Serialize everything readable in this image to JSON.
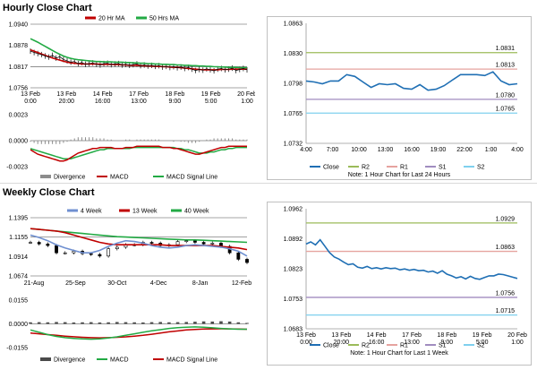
{
  "sections": {
    "hourly_title": "Hourly Close Chart",
    "weekly_title": "Weekly Close Chart"
  },
  "chart_data": [
    {
      "id": "hourly_price",
      "type": "line",
      "legend": [
        "20 Hr MA",
        "50 Hrs MA"
      ],
      "colors": {
        "price": "#000000",
        "ma20": "#c00000",
        "ma50": "#22aa44",
        "ref": "#808080"
      },
      "ylim": [
        1.0756,
        1.094
      ],
      "yticks": [
        "1.0940",
        "1.0878",
        "1.0817",
        "1.0756"
      ],
      "ref_level": 1.0817,
      "xticks": [
        "13 Feb\n0:00",
        "13 Feb\n20:00",
        "14 Feb\n16:00",
        "17 Feb\n13:00",
        "18 Feb\n9:00",
        "19 Feb\n5:00",
        "20 Feb\n1:00"
      ],
      "series": [
        {
          "name": "price",
          "values": [
            1.0862,
            1.0858,
            1.0855,
            1.0852,
            1.0848,
            1.0845,
            1.085,
            1.0842,
            1.0846,
            1.0838,
            1.0834,
            1.083,
            1.0832,
            1.0826,
            1.0829,
            1.0824,
            1.0826,
            1.0828,
            1.0824,
            1.0822,
            1.0826,
            1.0827,
            1.0823,
            1.0825,
            1.0826,
            1.0822,
            1.0824,
            1.0821,
            1.0823,
            1.0825,
            1.082,
            1.0822,
            1.0819,
            1.0821,
            1.0818,
            1.082,
            1.0816,
            1.0818,
            1.0815,
            1.0817,
            1.0814,
            1.0816,
            1.0812,
            1.0815,
            1.081,
            1.0806,
            1.0809,
            1.0807,
            1.0811,
            1.0808,
            1.0805,
            1.081,
            1.0812,
            1.0808,
            1.081,
            1.0813,
            1.0806,
            1.0809,
            1.0812,
            1.0808
          ]
        },
        {
          "name": "20 Hr MA",
          "values": [
            1.0866,
            1.0862,
            1.0858,
            1.0854,
            1.085,
            1.0846,
            1.0842,
            1.0839,
            1.0836,
            1.0833,
            1.083,
            1.0828,
            1.0827,
            1.0826,
            1.0825,
            1.0825,
            1.0825,
            1.0825,
            1.0825,
            1.0824,
            1.0824,
            1.0824,
            1.0824,
            1.0823,
            1.0823,
            1.0822,
            1.0822,
            1.0821,
            1.0821,
            1.0821,
            1.082,
            1.082,
            1.0819,
            1.0819,
            1.0818,
            1.0818,
            1.0817,
            1.0817,
            1.0816,
            1.0815,
            1.0815,
            1.0814,
            1.0813,
            1.0812,
            1.0811,
            1.081,
            1.0809,
            1.0808,
            1.0808,
            1.0808,
            1.0808,
            1.0808,
            1.0809,
            1.0809,
            1.0809,
            1.081,
            1.081,
            1.081,
            1.081,
            1.081
          ]
        },
        {
          "name": "50 Hrs MA",
          "values": [
            1.0898,
            1.0893,
            1.0888,
            1.0882,
            1.0876,
            1.087,
            1.0864,
            1.0858,
            1.0853,
            1.0848,
            1.0844,
            1.0841,
            1.0839,
            1.0837,
            1.0836,
            1.0835,
            1.0834,
            1.0833,
            1.0832,
            1.0832,
            1.0831,
            1.0831,
            1.0831,
            1.083,
            1.083,
            1.083,
            1.0829,
            1.0829,
            1.0828,
            1.0828,
            1.0827,
            1.0827,
            1.0826,
            1.0826,
            1.0825,
            1.0825,
            1.0824,
            1.0824,
            1.0823,
            1.0823,
            1.0822,
            1.0822,
            1.0821,
            1.0821,
            1.082,
            1.082,
            1.0819,
            1.0819,
            1.0818,
            1.0818,
            1.0817,
            1.0817,
            1.0816,
            1.0816,
            1.0815,
            1.0815,
            1.0815,
            1.0814,
            1.0814,
            1.0814
          ]
        }
      ]
    },
    {
      "id": "hourly_macd",
      "type": "bar",
      "legend": [
        "Divergence",
        "MACD",
        "MACD Signal Line"
      ],
      "colors": {
        "divergence": "#8c8c8c",
        "macd": "#c00000",
        "signal": "#22aa44"
      },
      "ylim": [
        -0.0023,
        0.0023
      ],
      "yticks": [
        "0.0023",
        "0.0000",
        "-0.0023"
      ],
      "series": [
        {
          "name": "MACD",
          "values": [
            -0.0008,
            -0.001,
            -0.0012,
            -0.0013,
            -0.0014,
            -0.0015,
            -0.0016,
            -0.0017,
            -0.0018,
            -0.0018,
            -0.0017,
            -0.0015,
            -0.0013,
            -0.0011,
            -0.001,
            -0.0009,
            -0.0008,
            -0.0007,
            -0.0007,
            -0.0006,
            -0.0006,
            -0.0006,
            -0.0006,
            -0.0007,
            -0.0007,
            -0.0007,
            -0.0006,
            -0.0006,
            -0.0006,
            -0.0005,
            -0.0005,
            -0.0005,
            -0.0005,
            -0.0005,
            -0.0005,
            -0.0005,
            -0.0006,
            -0.0006,
            -0.0006,
            -0.0007,
            -0.0007,
            -0.0008,
            -0.0009,
            -0.001,
            -0.0011,
            -0.0012,
            -0.0012,
            -0.0011,
            -0.001,
            -0.0009,
            -0.0008,
            -0.0007,
            -0.0006,
            -0.0006,
            -0.0005,
            -0.0005,
            -0.0005,
            -0.0005,
            -0.0005,
            -0.0005
          ]
        },
        {
          "name": "MACD Signal Line",
          "values": [
            -0.0007,
            -0.0008,
            -0.0009,
            -0.001,
            -0.0011,
            -0.0012,
            -0.0013,
            -0.0014,
            -0.0015,
            -0.0016,
            -0.0016,
            -0.0016,
            -0.0015,
            -0.0014,
            -0.0013,
            -0.0012,
            -0.0011,
            -0.001,
            -0.0009,
            -0.0008,
            -0.0008,
            -0.0007,
            -0.0007,
            -0.0007,
            -0.0007,
            -0.0007,
            -0.0007,
            -0.0007,
            -0.0006,
            -0.0006,
            -0.0006,
            -0.0006,
            -0.0006,
            -0.0006,
            -0.0006,
            -0.0006,
            -0.0006,
            -0.0006,
            -0.0006,
            -0.0006,
            -0.0007,
            -0.0007,
            -0.0008,
            -0.0008,
            -0.0009,
            -0.001,
            -0.0011,
            -0.0011,
            -0.0011,
            -0.001,
            -0.001,
            -0.0009,
            -0.0008,
            -0.0008,
            -0.0007,
            -0.0007,
            -0.0006,
            -0.0006,
            -0.0006,
            -0.0006
          ]
        },
        {
          "name": "Divergence",
          "values": [
            -0.0001,
            -0.0002,
            -0.0003,
            -0.0003,
            -0.0003,
            -0.0003,
            -0.0003,
            -0.0003,
            -0.0003,
            -0.0002,
            -0.0001,
            0.0001,
            0.0002,
            0.0003,
            0.0003,
            0.0003,
            0.0003,
            0.0003,
            0.0002,
            0.0002,
            0.0002,
            0.0001,
            0.0001,
            0.0,
            0.0,
            0.0,
            0.0001,
            0.0001,
            0.0,
            0.0001,
            0.0001,
            0.0001,
            0.0001,
            0.0001,
            0.0001,
            0.0001,
            0.0,
            0.0,
            0.0,
            -0.0001,
            0.0,
            -0.0001,
            -0.0001,
            -0.0002,
            -0.0002,
            -0.0002,
            -0.0001,
            0.0,
            0.0001,
            0.0001,
            0.0002,
            0.0002,
            0.0002,
            0.0002,
            0.0002,
            0.0002,
            0.0001,
            0.0001,
            0.0001,
            0.0001
          ]
        }
      ]
    },
    {
      "id": "hourly_pivot",
      "type": "line",
      "ylim": [
        1.0732,
        1.0863
      ],
      "yticks": [
        "1.0863",
        "1.0830",
        "1.0798",
        "1.0765",
        "1.0732"
      ],
      "xticks": [
        "4:00",
        "7:00",
        "10:00",
        "13:00",
        "16:00",
        "19:00",
        "22:00",
        "1:00",
        "4:00"
      ],
      "levels": [
        {
          "name": "R2",
          "value": 1.0831,
          "label": "1.0831",
          "color": "#9bbb59"
        },
        {
          "name": "R1",
          "value": 1.0813,
          "label": "1.0813",
          "color": "#e6a39f"
        },
        {
          "name": "S1",
          "value": 1.078,
          "label": "1.0780",
          "color": "#a08cbf"
        },
        {
          "name": "S2",
          "value": 1.0765,
          "label": "1.0765",
          "color": "#7fd0ee"
        }
      ],
      "series": [
        {
          "name": "Close",
          "color": "#1f6fb4",
          "values": [
            1.08,
            1.0799,
            1.0797,
            1.08,
            1.08,
            1.0807,
            1.0805,
            1.0799,
            1.0793,
            1.0797,
            1.0796,
            1.0797,
            1.0792,
            1.0791,
            1.0796,
            1.079,
            1.0791,
            1.0795,
            1.0801,
            1.0807,
            1.0807,
            1.0807,
            1.0806,
            1.081,
            1.08,
            1.0796,
            1.0797
          ]
        }
      ],
      "legend": [
        "Close",
        "R2",
        "R1",
        "S1",
        "S2"
      ],
      "note": "Note: 1 Hour Chart for Last 24 Hours"
    },
    {
      "id": "weekly_price",
      "type": "line",
      "legend": [
        "4 Week",
        "13 Week",
        "40 Week"
      ],
      "colors": {
        "w4": "#6f8fd0",
        "w13": "#c00000",
        "w40": "#22aa44",
        "ref": "#808080"
      },
      "ylim": [
        1.0674,
        1.1395
      ],
      "yticks": [
        "1.1395",
        "1.1155",
        "1.0914",
        "1.0674"
      ],
      "ref_level": 1.1155,
      "xticks": [
        "21-Aug",
        "25-Sep",
        "30-Oct",
        "4-Dec",
        "8-Jan",
        "12-Feb"
      ],
      "series": [
        {
          "name": "4 Week",
          "values": [
            1.118,
            1.115,
            1.111,
            1.106,
            1.102,
            1.099,
            1.096,
            1.096,
            1.099,
            1.104,
            1.108,
            1.111,
            1.11,
            1.108,
            1.105,
            1.103,
            1.102,
            1.103,
            1.105,
            1.106,
            1.105,
            1.104,
            1.103,
            1.101,
            1.098,
            1.092
          ]
        },
        {
          "name": "13 Week",
          "values": [
            1.126,
            1.125,
            1.124,
            1.123,
            1.121,
            1.118,
            1.115,
            1.112,
            1.109,
            1.107,
            1.106,
            1.106,
            1.106,
            1.106,
            1.106,
            1.106,
            1.105,
            1.105,
            1.105,
            1.105,
            1.105,
            1.105,
            1.104,
            1.103,
            1.102,
            1.1
          ]
        },
        {
          "name": "40 Week",
          "values": [
            1.126,
            1.125,
            1.124,
            1.123,
            1.122,
            1.121,
            1.12,
            1.119,
            1.118,
            1.117,
            1.116,
            1.1155,
            1.115,
            1.1145,
            1.114,
            1.1135,
            1.113,
            1.1125,
            1.112,
            1.112,
            1.1115,
            1.111,
            1.1105,
            1.11,
            1.1095,
            1.109
          ]
        },
        {
          "name": "close",
          "values": [
            1.109,
            1.107,
            1.105,
            1.096,
            1.096,
            1.098,
            1.095,
            1.094,
            1.092,
            1.101,
            1.103,
            1.106,
            1.106,
            1.109,
            1.108,
            1.105,
            1.106,
            1.11,
            1.111,
            1.109,
            1.107,
            1.108,
            1.104,
            1.096,
            1.088,
            1.084
          ]
        }
      ]
    },
    {
      "id": "weekly_macd",
      "type": "bar",
      "legend": [
        "Divergence",
        "MACD",
        "MACD Signal Line"
      ],
      "colors": {
        "divergence": "#4a4a4a",
        "macd": "#22aa44",
        "signal": "#c00000"
      },
      "ylim": [
        -0.0155,
        0.0155
      ],
      "yticks": [
        "0.0155",
        "0.0000",
        "-0.0155"
      ],
      "series": [
        {
          "name": "MACD",
          "values": [
            -0.004,
            -0.0055,
            -0.007,
            -0.0082,
            -0.009,
            -0.0095,
            -0.0098,
            -0.01,
            -0.0098,
            -0.0092,
            -0.0085,
            -0.0075,
            -0.0065,
            -0.0055,
            -0.0045,
            -0.0038,
            -0.003,
            -0.0025,
            -0.0022,
            -0.002,
            -0.0022,
            -0.0026,
            -0.003,
            -0.0033,
            -0.0035,
            -0.0035
          ]
        },
        {
          "name": "MACD Signal Line",
          "values": [
            -0.006,
            -0.0065,
            -0.007,
            -0.0075,
            -0.008,
            -0.0084,
            -0.0088,
            -0.009,
            -0.0091,
            -0.009,
            -0.0088,
            -0.0085,
            -0.008,
            -0.0075,
            -0.0068,
            -0.006,
            -0.0052,
            -0.0046,
            -0.004,
            -0.0036,
            -0.0034,
            -0.0033,
            -0.0032,
            -0.0033,
            -0.0034,
            -0.0035
          ]
        },
        {
          "name": "Divergence",
          "values": [
            0.001,
            0.0011,
            0.001,
            0.0012,
            0.0011,
            0.0009,
            0.001,
            0.0011,
            0.0009,
            0.001,
            0.0012,
            0.0011,
            0.001,
            0.0009,
            0.0011,
            0.0012,
            0.001,
            0.0011,
            0.0012,
            0.0014,
            0.0016,
            0.0015,
            0.0017,
            0.0015,
            0.001,
            0.0006
          ]
        }
      ]
    },
    {
      "id": "weekly_pivot",
      "type": "line",
      "ylim": [
        1.0683,
        1.0962
      ],
      "yticks": [
        "1.0962",
        "1.0892",
        "1.0823",
        "1.0753",
        "1.0683"
      ],
      "xticks": [
        "13 Feb\n0:00",
        "13 Feb\n20:00",
        "14 Feb\n16:00",
        "17 Feb\n13:00",
        "18 Feb\n9:00",
        "19 Feb\n5:00",
        "20 Feb\n1:00"
      ],
      "levels": [
        {
          "name": "R2",
          "value": 1.0929,
          "label": "1.0929",
          "color": "#9bbb59"
        },
        {
          "name": "R1",
          "value": 1.0863,
          "label": "1.0863",
          "color": "#e6a39f"
        },
        {
          "name": "S1",
          "value": 1.0756,
          "label": "1.0756",
          "color": "#a08cbf"
        },
        {
          "name": "S2",
          "value": 1.0715,
          "label": "1.0715",
          "color": "#7fd0ee"
        }
      ],
      "series": [
        {
          "name": "Close",
          "color": "#1f6fb4",
          "values": [
            1.088,
            1.0885,
            1.0878,
            1.089,
            1.0875,
            1.086,
            1.085,
            1.0845,
            1.0838,
            1.0832,
            1.0834,
            1.0826,
            1.0824,
            1.0828,
            1.0823,
            1.0825,
            1.0822,
            1.0825,
            1.0823,
            1.0824,
            1.082,
            1.0822,
            1.0819,
            1.0821,
            1.0818,
            1.0819,
            1.0815,
            1.0817,
            1.0812,
            1.0818,
            1.081,
            1.0806,
            1.0801,
            1.0804,
            1.0799,
            1.0805,
            1.08,
            1.0798,
            1.0802,
            1.0806,
            1.0806,
            1.081,
            1.0809,
            1.0806,
            1.0803,
            1.08
          ]
        }
      ],
      "legend": [
        "Close",
        "R2",
        "R1",
        "S1",
        "S2"
      ],
      "note": "Note: 1 Hour Chart for Last 1 Week"
    }
  ]
}
